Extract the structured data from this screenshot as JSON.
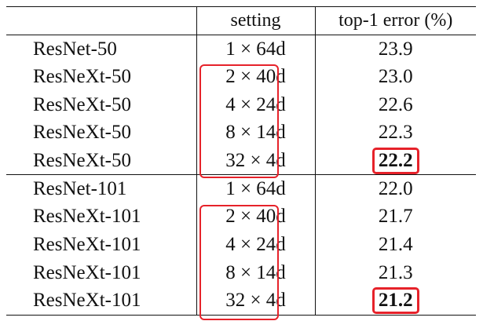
{
  "table": {
    "columns": [
      {
        "key": "model",
        "label": ""
      },
      {
        "key": "setting",
        "label": "setting"
      },
      {
        "key": "error",
        "label": "top-1 error (%)"
      }
    ],
    "groups": [
      {
        "rows": [
          {
            "model": "ResNet-50",
            "setting": "1 × 64d",
            "error": "23.9"
          },
          {
            "model": "ResNeXt-50",
            "setting": "2 × 40d",
            "error": "23.0"
          },
          {
            "model": "ResNeXt-50",
            "setting": "4 × 24d",
            "error": "22.6"
          },
          {
            "model": "ResNeXt-50",
            "setting": "8 × 14d",
            "error": "22.3"
          },
          {
            "model": "ResNeXt-50",
            "setting": "32 × 4d",
            "error": "22.2"
          }
        ]
      },
      {
        "rows": [
          {
            "model": "ResNet-101",
            "setting": "1 × 64d",
            "error": "22.0"
          },
          {
            "model": "ResNeXt-101",
            "setting": "2 × 40d",
            "error": "21.7"
          },
          {
            "model": "ResNeXt-101",
            "setting": "4 × 24d",
            "error": "21.4"
          },
          {
            "model": "ResNeXt-101",
            "setting": "8 × 14d",
            "error": "21.3"
          },
          {
            "model": "ResNeXt-101",
            "setting": "32 × 4d",
            "error": "21.2"
          }
        ]
      }
    ],
    "highlights": {
      "best_error_color": "#e6222a",
      "setting_box_color": "#e6222a"
    }
  }
}
